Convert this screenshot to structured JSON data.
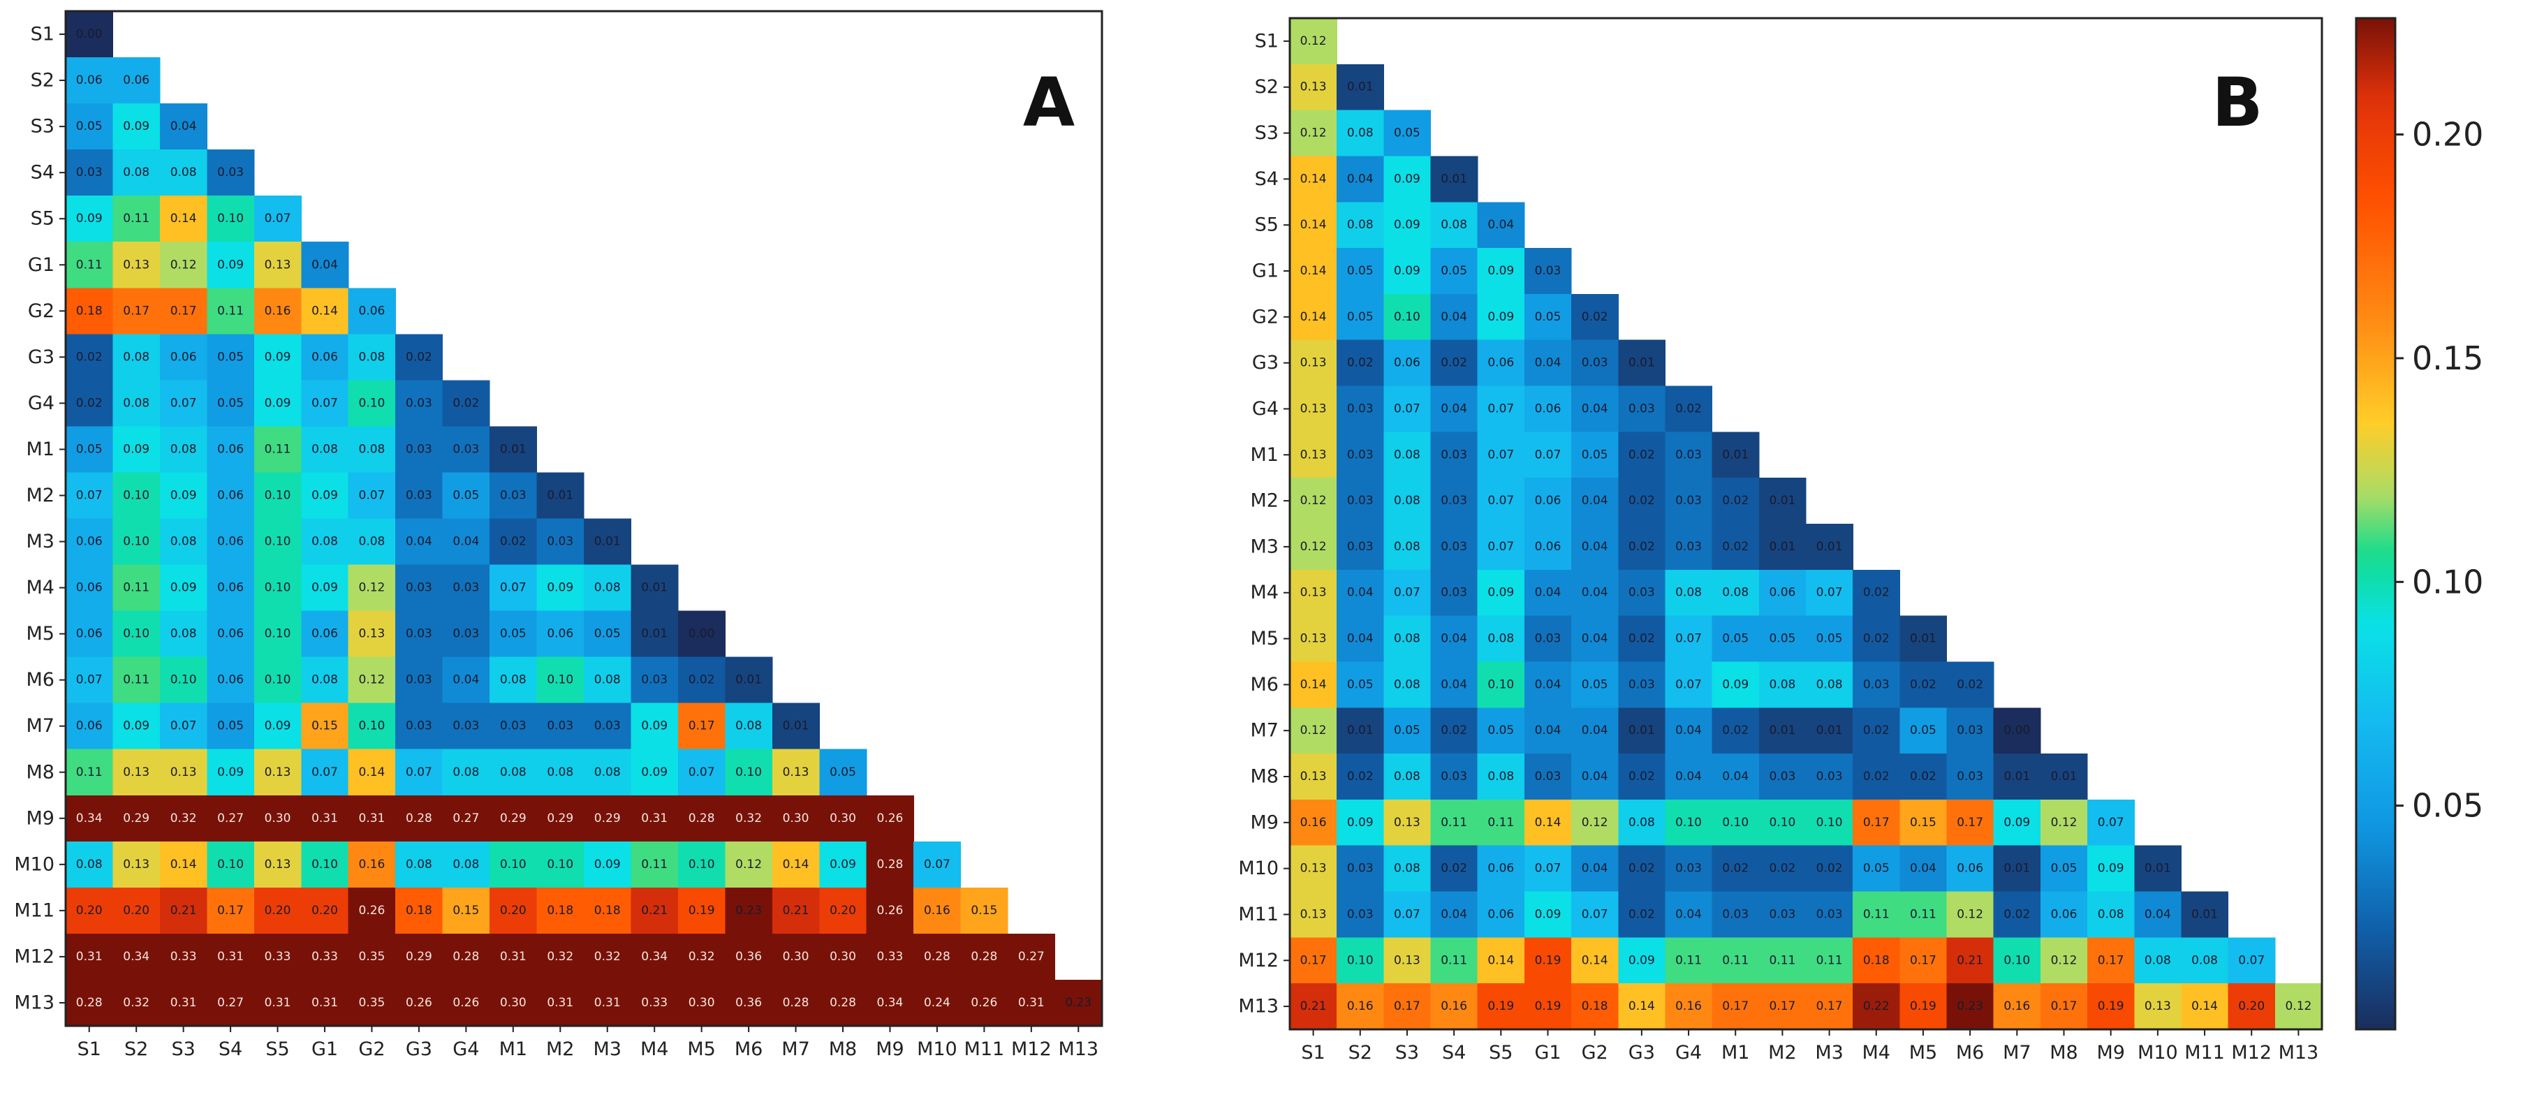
{
  "chart_data": {
    "type": "heatmap",
    "labels": [
      "S1",
      "S2",
      "S3",
      "S4",
      "S5",
      "G1",
      "G2",
      "G3",
      "G4",
      "M1",
      "M2",
      "M3",
      "M4",
      "M5",
      "M6",
      "M7",
      "M8",
      "M9",
      "M10",
      "M11",
      "M12",
      "M13"
    ],
    "panels": [
      {
        "letter": "A",
        "matrix": [
          [
            "0.00"
          ],
          [
            "0.06",
            "0.06"
          ],
          [
            "0.05",
            "0.09",
            "0.04"
          ],
          [
            "0.03",
            "0.08",
            "0.08",
            "0.03"
          ],
          [
            "0.09",
            "0.11",
            "0.14",
            "0.10",
            "0.07"
          ],
          [
            "0.11",
            "0.13",
            "0.12",
            "0.09",
            "0.13",
            "0.04"
          ],
          [
            "0.18",
            "0.17",
            "0.17",
            "0.11",
            "0.16",
            "0.14",
            "0.06"
          ],
          [
            "0.02",
            "0.08",
            "0.06",
            "0.05",
            "0.09",
            "0.06",
            "0.08",
            "0.02"
          ],
          [
            "0.02",
            "0.08",
            "0.07",
            "0.05",
            "0.09",
            "0.07",
            "0.10",
            "0.03",
            "0.02"
          ],
          [
            "0.05",
            "0.09",
            "0.08",
            "0.06",
            "0.11",
            "0.08",
            "0.08",
            "0.03",
            "0.03",
            "0.01"
          ],
          [
            "0.07",
            "0.10",
            "0.09",
            "0.06",
            "0.10",
            "0.09",
            "0.07",
            "0.03",
            "0.05",
            "0.03",
            "0.01"
          ],
          [
            "0.06",
            "0.10",
            "0.08",
            "0.06",
            "0.10",
            "0.08",
            "0.08",
            "0.04",
            "0.04",
            "0.02",
            "0.03",
            "0.01"
          ],
          [
            "0.06",
            "0.11",
            "0.09",
            "0.06",
            "0.10",
            "0.09",
            "0.12",
            "0.03",
            "0.03",
            "0.07",
            "0.09",
            "0.08",
            "0.01"
          ],
          [
            "0.06",
            "0.10",
            "0.08",
            "0.06",
            "0.10",
            "0.06",
            "0.13",
            "0.03",
            "0.03",
            "0.05",
            "0.06",
            "0.05",
            "0.01",
            "0.00"
          ],
          [
            "0.07",
            "0.11",
            "0.10",
            "0.06",
            "0.10",
            "0.08",
            "0.12",
            "0.03",
            "0.04",
            "0.08",
            "0.10",
            "0.08",
            "0.03",
            "0.02",
            "0.01"
          ],
          [
            "0.06",
            "0.09",
            "0.07",
            "0.05",
            "0.09",
            "0.15",
            "0.10",
            "0.03",
            "0.03",
            "0.03",
            "0.03",
            "0.03",
            "0.09",
            "0.17",
            "0.08",
            "0.01"
          ],
          [
            "0.11",
            "0.13",
            "0.13",
            "0.09",
            "0.13",
            "0.07",
            "0.14",
            "0.07",
            "0.08",
            "0.08",
            "0.08",
            "0.08",
            "0.09",
            "0.07",
            "0.10",
            "0.13",
            "0.05"
          ],
          [
            "0.34",
            "0.29",
            "0.32",
            "0.27",
            "0.30",
            "0.31",
            "0.31",
            "0.28",
            "0.27",
            "0.29",
            "0.29",
            "0.29",
            "0.31",
            "0.28",
            "0.32",
            "0.30",
            "0.30",
            "0.26"
          ],
          [
            "0.08",
            "0.13",
            "0.14",
            "0.10",
            "0.13",
            "0.10",
            "0.16",
            "0.08",
            "0.08",
            "0.10",
            "0.10",
            "0.09",
            "0.11",
            "0.10",
            "0.12",
            "0.14",
            "0.09",
            "0.28",
            "0.07"
          ],
          [
            "0.20",
            "0.20",
            "0.21",
            "0.17",
            "0.20",
            "0.20",
            "0.26",
            "0.18",
            "0.15",
            "0.20",
            "0.18",
            "0.18",
            "0.21",
            "0.19",
            "0.23",
            "0.21",
            "0.20",
            "0.26",
            "0.16",
            "0.15"
          ],
          [
            "0.31",
            "0.34",
            "0.33",
            "0.31",
            "0.33",
            "0.33",
            "0.35",
            "0.29",
            "0.28",
            "0.31",
            "0.32",
            "0.32",
            "0.34",
            "0.32",
            "0.36",
            "0.30",
            "0.30",
            "0.33",
            "0.28",
            "0.28",
            "0.27"
          ],
          [
            "0.28",
            "0.32",
            "0.31",
            "0.27",
            "0.31",
            "0.31",
            "0.35",
            "0.26",
            "0.26",
            "0.30",
            "0.31",
            "0.31",
            "0.33",
            "0.30",
            "0.36",
            "0.28",
            "0.28",
            "0.34",
            "0.24",
            "0.26",
            "0.31",
            "0.23"
          ]
        ]
      },
      {
        "letter": "B",
        "matrix": [
          [
            "0.12"
          ],
          [
            "0.13",
            "0.01"
          ],
          [
            "0.12",
            "0.08",
            "0.05"
          ],
          [
            "0.14",
            "0.04",
            "0.09",
            "0.01"
          ],
          [
            "0.14",
            "0.08",
            "0.09",
            "0.08",
            "0.04"
          ],
          [
            "0.14",
            "0.05",
            "0.09",
            "0.05",
            "0.09",
            "0.03"
          ],
          [
            "0.14",
            "0.05",
            "0.10",
            "0.04",
            "0.09",
            "0.05",
            "0.02"
          ],
          [
            "0.13",
            "0.02",
            "0.06",
            "0.02",
            "0.06",
            "0.04",
            "0.03",
            "0.01"
          ],
          [
            "0.13",
            "0.03",
            "0.07",
            "0.04",
            "0.07",
            "0.06",
            "0.04",
            "0.03",
            "0.02"
          ],
          [
            "0.13",
            "0.03",
            "0.08",
            "0.03",
            "0.07",
            "0.07",
            "0.05",
            "0.02",
            "0.03",
            "0.01"
          ],
          [
            "0.12",
            "0.03",
            "0.08",
            "0.03",
            "0.07",
            "0.06",
            "0.04",
            "0.02",
            "0.03",
            "0.02",
            "0.01"
          ],
          [
            "0.12",
            "0.03",
            "0.08",
            "0.03",
            "0.07",
            "0.06",
            "0.04",
            "0.02",
            "0.03",
            "0.02",
            "0.01",
            "0.01"
          ],
          [
            "0.13",
            "0.04",
            "0.07",
            "0.03",
            "0.09",
            "0.04",
            "0.04",
            "0.03",
            "0.08",
            "0.08",
            "0.06",
            "0.07",
            "0.02"
          ],
          [
            "0.13",
            "0.04",
            "0.08",
            "0.04",
            "0.08",
            "0.03",
            "0.04",
            "0.02",
            "0.07",
            "0.05",
            "0.05",
            "0.05",
            "0.02",
            "0.01"
          ],
          [
            "0.14",
            "0.05",
            "0.08",
            "0.04",
            "0.10",
            "0.04",
            "0.05",
            "0.03",
            "0.07",
            "0.09",
            "0.08",
            "0.08",
            "0.03",
            "0.02",
            "0.02"
          ],
          [
            "0.12",
            "0.01",
            "0.05",
            "0.02",
            "0.05",
            "0.04",
            "0.04",
            "0.01",
            "0.04",
            "0.02",
            "0.01",
            "0.01",
            "0.02",
            "0.05",
            "0.03",
            "0.00"
          ],
          [
            "0.13",
            "0.02",
            "0.08",
            "0.03",
            "0.08",
            "0.03",
            "0.04",
            "0.02",
            "0.04",
            "0.04",
            "0.03",
            "0.03",
            "0.02",
            "0.02",
            "0.03",
            "0.01",
            "0.01"
          ],
          [
            "0.16",
            "0.09",
            "0.13",
            "0.11",
            "0.11",
            "0.14",
            "0.12",
            "0.08",
            "0.10",
            "0.10",
            "0.10",
            "0.10",
            "0.17",
            "0.15",
            "0.17",
            "0.09",
            "0.12",
            "0.07"
          ],
          [
            "0.13",
            "0.03",
            "0.08",
            "0.02",
            "0.06",
            "0.07",
            "0.04",
            "0.02",
            "0.03",
            "0.02",
            "0.02",
            "0.02",
            "0.05",
            "0.04",
            "0.06",
            "0.01",
            "0.05",
            "0.09",
            "0.01"
          ],
          [
            "0.13",
            "0.03",
            "0.07",
            "0.04",
            "0.06",
            "0.09",
            "0.07",
            "0.02",
            "0.04",
            "0.03",
            "0.03",
            "0.03",
            "0.11",
            "0.11",
            "0.12",
            "0.02",
            "0.06",
            "0.08",
            "0.04",
            "0.01"
          ],
          [
            "0.17",
            "0.10",
            "0.13",
            "0.11",
            "0.14",
            "0.19",
            "0.14",
            "0.09",
            "0.11",
            "0.11",
            "0.11",
            "0.11",
            "0.18",
            "0.17",
            "0.21",
            "0.10",
            "0.12",
            "0.17",
            "0.08",
            "0.08",
            "0.07"
          ],
          [
            "0.21",
            "0.16",
            "0.17",
            "0.16",
            "0.19",
            "0.19",
            "0.18",
            "0.14",
            "0.16",
            "0.17",
            "0.17",
            "0.17",
            "0.22",
            "0.19",
            "0.23",
            "0.16",
            "0.17",
            "0.19",
            "0.13",
            "0.14",
            "0.20",
            "0.12"
          ]
        ]
      }
    ],
    "colorbar": {
      "colormap": "turbo",
      "vmin": 0.0,
      "vmax": 0.226,
      "ticks": [
        "0.05",
        "0.10",
        "0.15",
        "0.20"
      ],
      "note": "Panel A values above the range saturate to the darkest red."
    }
  }
}
